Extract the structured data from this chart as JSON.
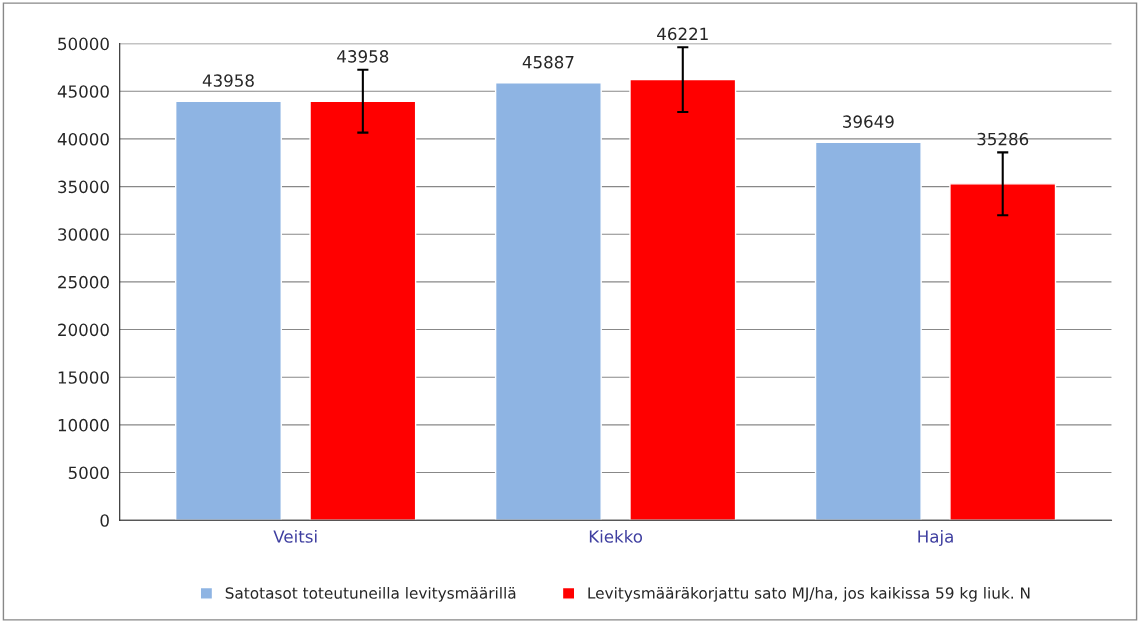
{
  "chart_data": {
    "type": "bar",
    "categories": [
      "Veitsi",
      "Kiekko",
      "Haja"
    ],
    "series": [
      {
        "name": "Satotasot toteutuneilla levitysmäärillä",
        "color": "#8eb4e3",
        "values": [
          43958,
          45887,
          39649
        ]
      },
      {
        "name": "Levitysmääräkorjattu sato MJ/ha, jos kaikissa 59 kg liuk. N",
        "color": "#ff0000",
        "values": [
          43958,
          46221,
          35286
        ],
        "errors": [
          3300,
          3400,
          3300
        ]
      }
    ],
    "ylim": [
      0,
      50000
    ],
    "yticks": [
      0,
      5000,
      10000,
      15000,
      20000,
      25000,
      30000,
      35000,
      40000,
      45000,
      50000
    ],
    "grid": "y",
    "legend": "bottom",
    "data_labels": true
  }
}
